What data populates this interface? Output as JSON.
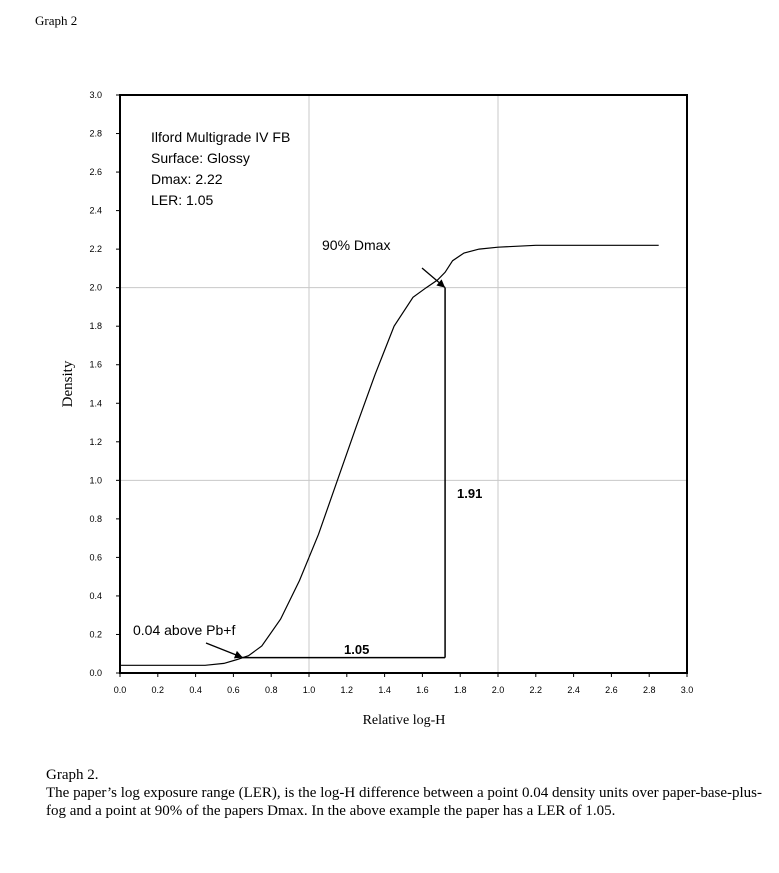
{
  "page_label": "Graph 2",
  "caption": {
    "title": "Graph 2.",
    "body": "The paper’s log exposure range (LER), is the log-H difference between a point 0.04 density units over paper-base-plus-fog and a point at 90% of the papers Dmax.  In the above example the paper has a LER of 1.05."
  },
  "chart_data": {
    "type": "line",
    "xlabel": "Relative log-H",
    "ylabel": "Density",
    "xlim": [
      0.0,
      3.0
    ],
    "ylim": [
      0.0,
      3.0
    ],
    "x_ticks": [
      "0.0",
      "0.2",
      "0.4",
      "0.6",
      "0.8",
      "1.0",
      "1.2",
      "1.4",
      "1.6",
      "1.8",
      "2.0",
      "2.2",
      "2.4",
      "2.6",
      "2.8",
      "3.0"
    ],
    "y_ticks": [
      "0.0",
      "0.2",
      "0.4",
      "0.6",
      "0.8",
      "1.0",
      "1.2",
      "1.4",
      "1.6",
      "1.8",
      "2.0",
      "2.2",
      "2.4",
      "2.6",
      "2.8",
      "3.0"
    ],
    "grid": {
      "major_every": 1.0
    },
    "info_box": [
      "Ilford Multigrade IV FB",
      "Surface: Glossy",
      "Dmax: 2.22",
      "LER: 1.05"
    ],
    "series": [
      {
        "x": [
          0.0,
          0.45,
          0.55,
          0.62,
          0.68,
          0.75,
          0.85,
          0.95,
          1.05,
          1.15,
          1.25,
          1.35,
          1.45,
          1.55,
          1.62,
          1.68,
          1.72,
          1.76,
          1.82,
          1.9,
          2.0,
          2.2,
          2.5,
          2.85
        ],
        "y": [
          0.04,
          0.04,
          0.05,
          0.07,
          0.09,
          0.14,
          0.28,
          0.48,
          0.72,
          1.0,
          1.28,
          1.55,
          1.8,
          1.95,
          2.0,
          2.04,
          2.08,
          2.14,
          2.18,
          2.2,
          2.21,
          2.22,
          2.22,
          2.22
        ]
      }
    ],
    "ler_bracket": {
      "x_start": 0.65,
      "x_end": 1.72,
      "y_base": 0.08,
      "y_top": 2.0
    },
    "annotations": {
      "dmax90": "90% Dmax",
      "pbf": "0.04 above Pb+f",
      "horizontal_value": "1.05",
      "vertical_value": "1.91"
    }
  }
}
